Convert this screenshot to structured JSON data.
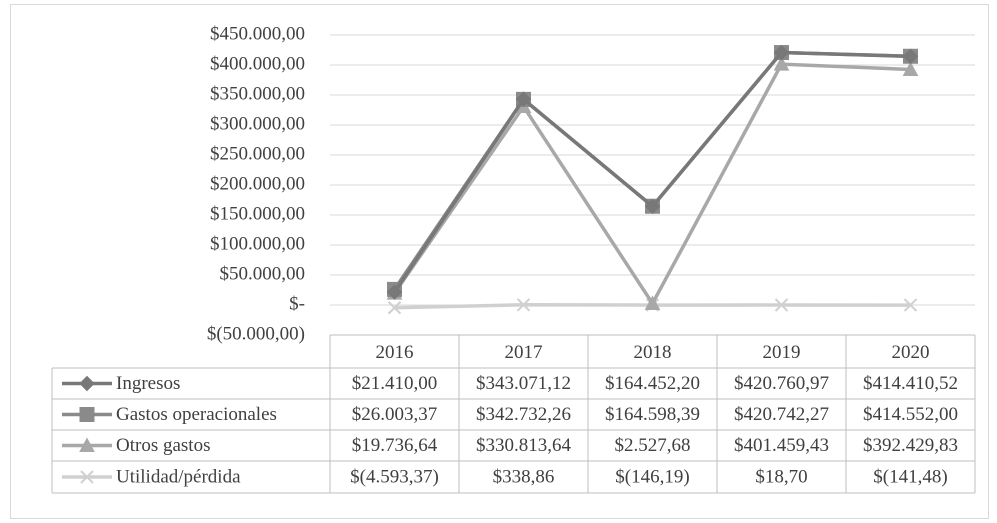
{
  "chart_data": {
    "type": "line",
    "categories": [
      "2016",
      "2017",
      "2018",
      "2019",
      "2020"
    ],
    "series": [
      {
        "name": "Ingresos",
        "color": "#787878",
        "marker": "diamond",
        "values": [
          21410.0,
          343071.12,
          164452.2,
          420760.97,
          414410.52
        ],
        "value_labels": [
          "$21.410,00",
          "$343.071,12",
          "$164.452,20",
          "$420.760,97",
          "$414.410,52"
        ]
      },
      {
        "name": "Gastos operacionales",
        "color": "#8a8a8a",
        "marker": "square",
        "values": [
          26003.37,
          342732.26,
          164598.39,
          420742.27,
          414552.0
        ],
        "value_labels": [
          "$26.003,37",
          "$342.732,26",
          "$164.598,39",
          "$420.742,27",
          "$414.552,00"
        ]
      },
      {
        "name": "Otros gastos",
        "color": "#a8a8a8",
        "marker": "triangle",
        "values": [
          19736.64,
          330813.64,
          2527.68,
          401459.43,
          392429.83
        ],
        "value_labels": [
          "$19.736,64",
          "$330.813,64",
          "$2.527,68",
          "$401.459,43",
          "$392.429,83"
        ]
      },
      {
        "name": "Utilidad/pérdida",
        "color": "#d0d0d0",
        "marker": "x",
        "values": [
          -4593.37,
          338.86,
          -146.19,
          18.7,
          -141.48
        ],
        "value_labels": [
          "$(4.593,37)",
          "$338,86",
          "$(146,19)",
          "$18,70",
          "$(141,48)"
        ]
      }
    ],
    "ylim": [
      -50000,
      450000
    ],
    "yticks": [
      {
        "value": -50000,
        "label": "$(50.000,00)"
      },
      {
        "value": 0,
        "label": "$-"
      },
      {
        "value": 50000,
        "label": "$50.000,00"
      },
      {
        "value": 100000,
        "label": "$100.000,00"
      },
      {
        "value": 150000,
        "label": "$150.000,00"
      },
      {
        "value": 200000,
        "label": "$200.000,00"
      },
      {
        "value": 250000,
        "label": "$250.000,00"
      },
      {
        "value": 300000,
        "label": "$300.000,00"
      },
      {
        "value": 350000,
        "label": "$350.000,00"
      },
      {
        "value": 400000,
        "label": "$400.000,00"
      },
      {
        "value": 450000,
        "label": "$450.000,00"
      }
    ],
    "grid": true
  }
}
